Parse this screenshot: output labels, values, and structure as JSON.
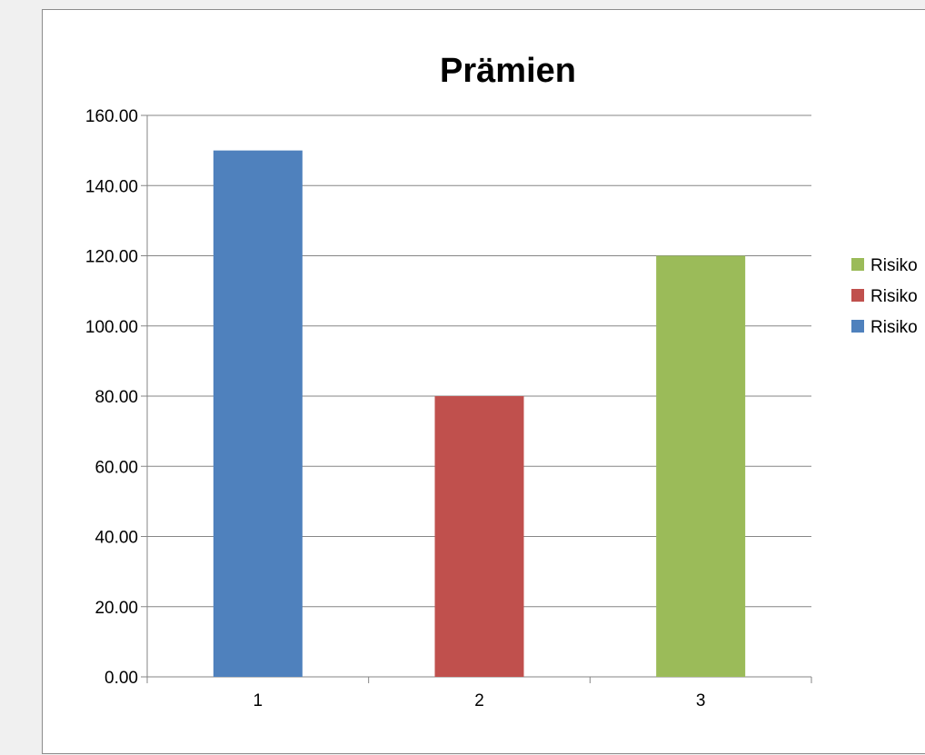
{
  "chart_data": {
    "type": "bar",
    "title": "Prämien",
    "xlabel": "",
    "ylabel": "",
    "categories": [
      "1",
      "2",
      "3"
    ],
    "series": [
      {
        "name": "Risiko",
        "category": "1",
        "value": 150,
        "color": "#4f81bd"
      },
      {
        "name": "Risiko",
        "category": "2",
        "value": 80,
        "color": "#c0504d"
      },
      {
        "name": "Risiko",
        "category": "3",
        "value": 120,
        "color": "#9bbb59"
      }
    ],
    "ylim": [
      0,
      160
    ],
    "y_ticks": [
      "0.00",
      "20.00",
      "40.00",
      "60.00",
      "80.00",
      "100.00",
      "120.00",
      "140.00",
      "160.00"
    ],
    "grid": true,
    "legend": {
      "position": "right",
      "order": [
        2,
        1,
        0
      ]
    }
  }
}
